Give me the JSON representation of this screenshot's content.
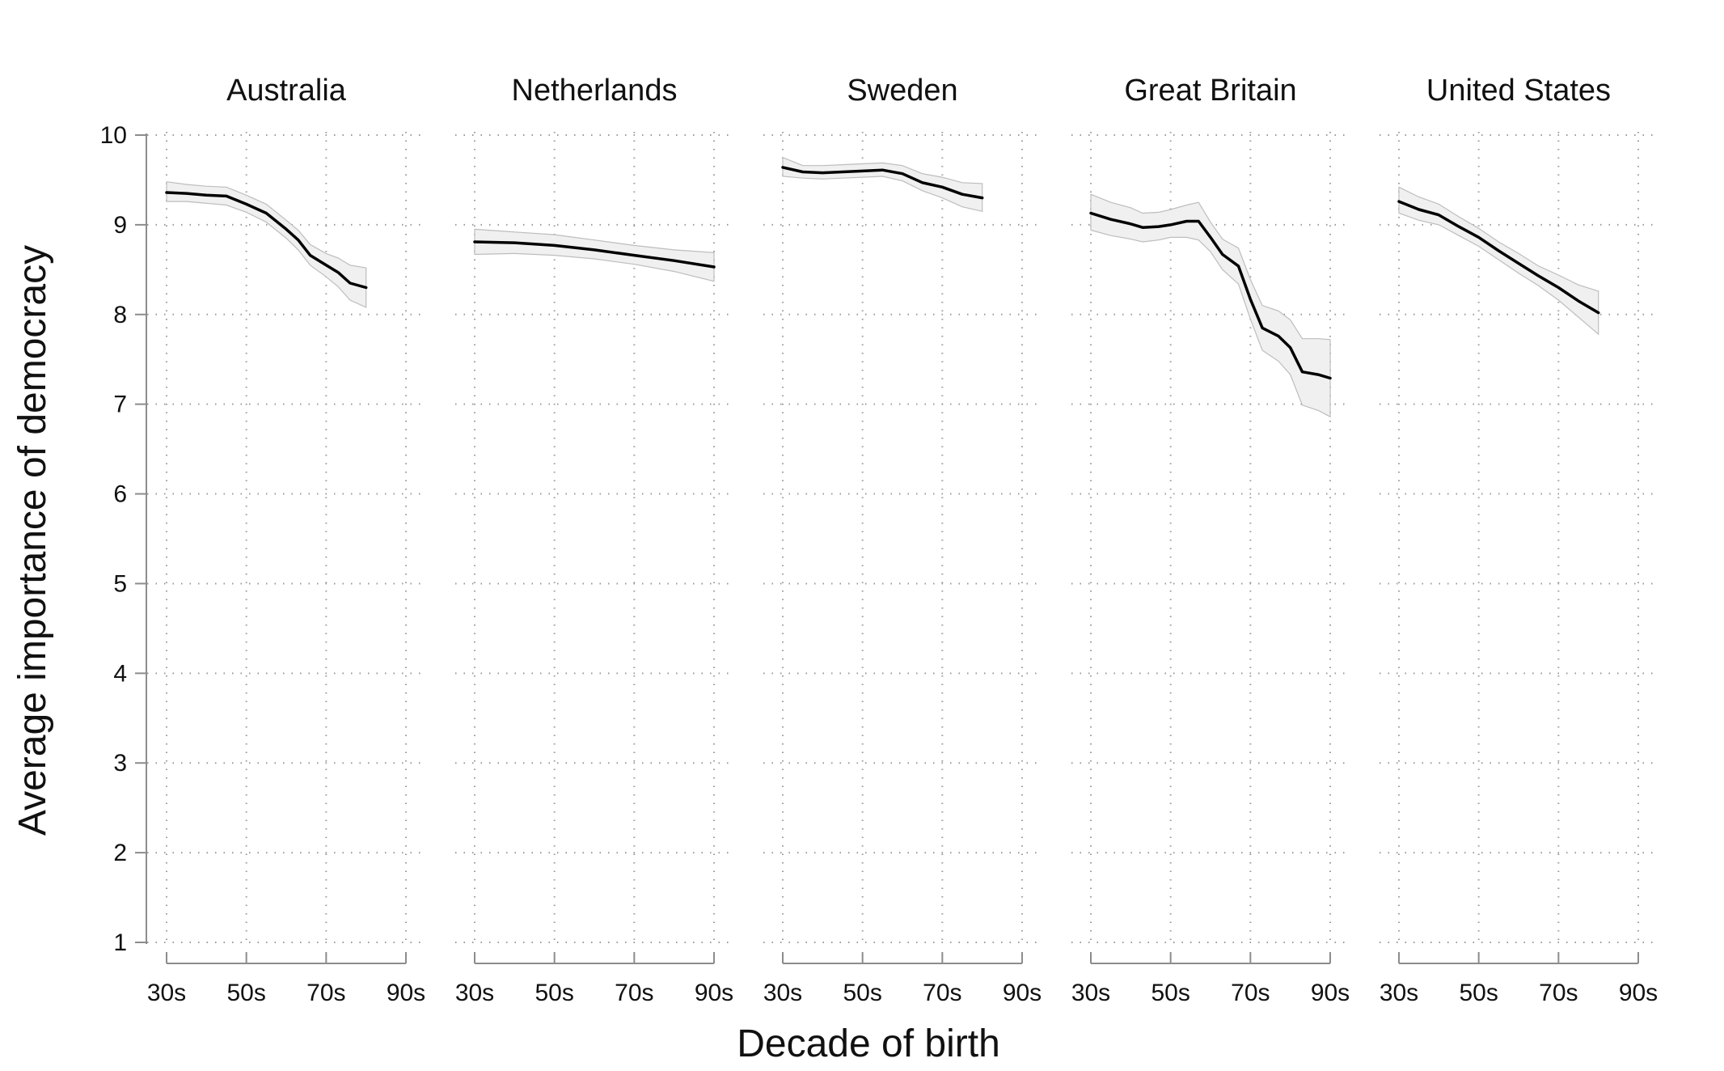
{
  "chart_data": {
    "type": "line",
    "xlabel": "Decade of birth",
    "ylabel": "Average importance of democracy",
    "ylim": [
      1,
      10
    ],
    "yticks": [
      1,
      2,
      3,
      4,
      5,
      6,
      7,
      8,
      9,
      10
    ],
    "xlim": [
      1930,
      1990
    ],
    "xticks": [
      1930,
      1950,
      1970,
      1990
    ],
    "xtick_labels": [
      "30s",
      "50s",
      "70s",
      "90s"
    ],
    "grid": true,
    "band_color": "#f0f0f0",
    "line_color": "#000000",
    "panels": [
      {
        "title": "Australia",
        "x": [
          1930,
          1935,
          1940,
          1945,
          1950,
          1955,
          1960,
          1963,
          1966,
          1970,
          1973,
          1976,
          1980
        ],
        "y": [
          9.36,
          9.35,
          9.33,
          9.32,
          9.23,
          9.13,
          8.95,
          8.83,
          8.66,
          8.55,
          8.47,
          8.35,
          8.3
        ],
        "lower": [
          9.26,
          9.26,
          9.24,
          9.22,
          9.14,
          9.03,
          8.85,
          8.72,
          8.55,
          8.42,
          8.31,
          8.16,
          8.08
        ],
        "upper": [
          9.48,
          9.45,
          9.43,
          9.42,
          9.33,
          9.23,
          9.05,
          8.94,
          8.78,
          8.68,
          8.63,
          8.55,
          8.52
        ]
      },
      {
        "title": "Netherlands",
        "x": [
          1930,
          1940,
          1950,
          1960,
          1970,
          1980,
          1990
        ],
        "y": [
          8.81,
          8.8,
          8.77,
          8.72,
          8.66,
          8.6,
          8.53
        ],
        "lower": [
          8.67,
          8.68,
          8.66,
          8.62,
          8.56,
          8.48,
          8.37
        ],
        "upper": [
          8.95,
          8.92,
          8.89,
          8.83,
          8.77,
          8.72,
          8.69
        ]
      },
      {
        "title": "Sweden",
        "x": [
          1930,
          1935,
          1940,
          1945,
          1950,
          1955,
          1960,
          1965,
          1970,
          1975,
          1980
        ],
        "y": [
          9.64,
          9.59,
          9.58,
          9.59,
          9.6,
          9.61,
          9.57,
          9.47,
          9.42,
          9.34,
          9.3
        ],
        "lower": [
          9.54,
          9.52,
          9.51,
          9.52,
          9.53,
          9.54,
          9.49,
          9.38,
          9.3,
          9.2,
          9.15
        ],
        "upper": [
          9.75,
          9.66,
          9.66,
          9.67,
          9.68,
          9.69,
          9.66,
          9.57,
          9.53,
          9.47,
          9.46
        ]
      },
      {
        "title": "Great Britain",
        "x": [
          1930,
          1935,
          1940,
          1943,
          1947,
          1950,
          1954,
          1957,
          1960,
          1963,
          1967,
          1970,
          1973,
          1977,
          1980,
          1983,
          1987,
          1990
        ],
        "y": [
          9.13,
          9.06,
          9.01,
          8.97,
          8.98,
          9.0,
          9.04,
          9.04,
          8.86,
          8.67,
          8.54,
          8.17,
          7.85,
          7.76,
          7.63,
          7.36,
          7.33,
          7.29
        ],
        "lower": [
          8.94,
          8.88,
          8.84,
          8.81,
          8.83,
          8.86,
          8.86,
          8.83,
          8.7,
          8.5,
          8.34,
          7.95,
          7.6,
          7.48,
          7.33,
          6.99,
          6.93,
          6.86
        ],
        "upper": [
          9.34,
          9.25,
          9.19,
          9.13,
          9.14,
          9.17,
          9.22,
          9.25,
          9.03,
          8.84,
          8.74,
          8.39,
          8.1,
          8.04,
          7.94,
          7.73,
          7.73,
          7.72
        ]
      },
      {
        "title": "United States",
        "x": [
          1930,
          1935,
          1940,
          1945,
          1950,
          1955,
          1960,
          1965,
          1970,
          1975,
          1980
        ],
        "y": [
          9.26,
          9.17,
          9.11,
          8.98,
          8.86,
          8.71,
          8.57,
          8.43,
          8.3,
          8.15,
          8.02
        ],
        "lower": [
          9.13,
          9.05,
          9.0,
          8.88,
          8.76,
          8.61,
          8.46,
          8.32,
          8.16,
          7.97,
          7.78
        ],
        "upper": [
          9.42,
          9.31,
          9.23,
          9.09,
          8.96,
          8.81,
          8.68,
          8.54,
          8.44,
          8.33,
          8.26
        ]
      }
    ]
  }
}
